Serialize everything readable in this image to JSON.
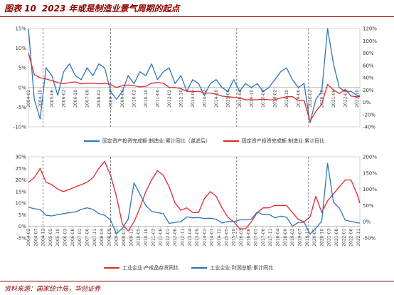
{
  "header": {
    "figure_number": "图表 10",
    "title": "2023 年或是制造业景气周期的起点"
  },
  "footer": {
    "source": "资料来源：国家统计局，华创证券"
  },
  "colors": {
    "accent": "#8B0000",
    "series_blue": "#2E75B6",
    "series_red": "#E0282E"
  },
  "chart_data": [
    {
      "type": "line",
      "title": "",
      "xlabel": "",
      "ylabel": "",
      "ylim_left": [
        -10,
        15
      ],
      "ylim_right": [
        -40,
        120
      ],
      "left_ticks": [
        "15%",
        "10%",
        "5%",
        "0%",
        "-5%",
        "-10%"
      ],
      "right_ticks": [
        "120%",
        "100%",
        "80%",
        "60%",
        "40%",
        "20%",
        "0%",
        "-20%",
        "-40%"
      ],
      "x_ticks": [
        "2004-02",
        "2004-10",
        "2005-06",
        "2006-02",
        "2006-10",
        "2007-06",
        "2008-02",
        "2008-10",
        "2009-06",
        "2010-02",
        "2010-10",
        "2011-06",
        "2012-02",
        "2012-10",
        "2013-06",
        "2014-02",
        "2014-10",
        "2015-06",
        "2016-02",
        "2016-10",
        "2017-06",
        "2018-02",
        "2018-10",
        "2019-06",
        "2020-02",
        "2020-10",
        "2021-06",
        "2022-02",
        "2022-10"
      ],
      "dashed_lines_x": [
        "2004-12",
        "2008-10",
        "2015-12",
        "2020-01"
      ],
      "legend_position": "bottom",
      "series": [
        {
          "name": "固定资产投资完成额:制造业:累计同比（逆滤后）",
          "axis": "left",
          "color": "#2E75B6",
          "x": [
            "2004-02",
            "2004-06",
            "2004-10",
            "2005-02",
            "2005-06",
            "2005-10",
            "2006-02",
            "2006-06",
            "2006-10",
            "2007-02",
            "2007-06",
            "2007-10",
            "2008-02",
            "2008-06",
            "2008-10",
            "2009-02",
            "2009-06",
            "2009-10",
            "2010-02",
            "2010-06",
            "2010-10",
            "2011-02",
            "2011-06",
            "2011-10",
            "2012-02",
            "2012-06",
            "2012-10",
            "2013-02",
            "2013-06",
            "2013-10",
            "2014-02",
            "2014-06",
            "2014-10",
            "2015-02",
            "2015-06",
            "2015-10",
            "2016-02",
            "2016-06",
            "2016-10",
            "2017-02",
            "2017-06",
            "2017-10",
            "2018-02",
            "2018-06",
            "2018-10",
            "2019-02",
            "2019-06",
            "2019-10",
            "2020-02",
            "2020-06",
            "2020-10",
            "2021-02",
            "2021-06",
            "2021-10",
            "2022-02",
            "2022-06",
            "2022-10",
            "2022-12"
          ],
          "values": [
            15,
            -3,
            -8,
            5,
            3,
            -2,
            4,
            6,
            3,
            2,
            5,
            3,
            6,
            5,
            -1,
            -3,
            -1,
            3,
            1,
            4,
            3,
            6,
            2,
            4,
            5,
            1,
            3,
            -1,
            2,
            1,
            -2,
            1,
            2,
            0,
            -1,
            2,
            -1,
            1,
            0,
            1,
            -1,
            0,
            2,
            4,
            5,
            2,
            0,
            1,
            -9,
            -3,
            -1,
            15,
            6,
            0,
            -1,
            -1,
            -2,
            -2
          ]
        },
        {
          "name": "固定资产投资完成额:制造业:累计同比",
          "axis": "right",
          "color": "#E0282E",
          "x": [
            "2004-02",
            "2004-06",
            "2004-10",
            "2005-02",
            "2005-06",
            "2005-10",
            "2006-02",
            "2006-06",
            "2006-10",
            "2007-02",
            "2007-06",
            "2007-10",
            "2008-02",
            "2008-06",
            "2008-10",
            "2009-02",
            "2009-06",
            "2009-10",
            "2010-02",
            "2010-06",
            "2010-10",
            "2011-02",
            "2011-06",
            "2011-10",
            "2012-02",
            "2012-06",
            "2012-10",
            "2013-02",
            "2013-06",
            "2013-10",
            "2014-02",
            "2014-06",
            "2014-10",
            "2015-02",
            "2015-06",
            "2015-10",
            "2016-02",
            "2016-06",
            "2016-10",
            "2017-02",
            "2017-06",
            "2017-10",
            "2018-02",
            "2018-06",
            "2018-10",
            "2019-02",
            "2019-06",
            "2019-10",
            "2020-02",
            "2020-06",
            "2020-10",
            "2021-02",
            "2021-06",
            "2021-10",
            "2022-02",
            "2022-06",
            "2022-10",
            "2022-12"
          ],
          "values": [
            80,
            45,
            40,
            38,
            35,
            32,
            30,
            32,
            33,
            30,
            31,
            31,
            30,
            31,
            29,
            24,
            27,
            28,
            27,
            25,
            26,
            31,
            32,
            31,
            24,
            24,
            22,
            18,
            17,
            18,
            15,
            15,
            13,
            10,
            9,
            8,
            7,
            4,
            4,
            4,
            5,
            4,
            4,
            7,
            9,
            9,
            3,
            3,
            -31,
            -15,
            -3,
            29,
            20,
            14,
            21,
            10,
            9,
            9
          ]
        }
      ]
    },
    {
      "type": "line",
      "title": "",
      "xlabel": "",
      "ylabel": "",
      "ylim_left": [
        -5,
        30
      ],
      "ylim_right": [
        -50,
        200
      ],
      "left_ticks": [
        "30%",
        "25%",
        "20%",
        "15%",
        "10%",
        "5%",
        "0%",
        "-5%"
      ],
      "right_ticks": [
        "200%",
        "150%",
        "100%",
        "50%",
        "0%",
        "-50%"
      ],
      "x_ticks": [
        "2004-02",
        "2004-07",
        "2004-12",
        "2005-05",
        "2005-10",
        "2006-03",
        "2006-08",
        "2007-01",
        "2007-06",
        "2007-11",
        "2008-04",
        "2008-09",
        "2009-02",
        "2009-07",
        "2009-12",
        "2010-05",
        "2010-10",
        "2011-03",
        "2011-08",
        "2012-01",
        "2012-06",
        "2012-11",
        "2013-04",
        "2013-09",
        "2014-02",
        "2014-07",
        "2014-12",
        "2015-05",
        "2015-10",
        "2016-03",
        "2016-08",
        "2017-01",
        "2017-06",
        "2017-11",
        "2018-04",
        "2018-09",
        "2019-02",
        "2019-07",
        "2019-12",
        "2020-05",
        "2020-10",
        "2021-03",
        "2021-08",
        "2022-01",
        "2022-06",
        "2022-11"
      ],
      "dashed_lines_x": [
        "2004-12",
        "2008-10",
        "2015-12",
        "2020-01"
      ],
      "legend_position": "bottom",
      "series": [
        {
          "name": "工业企业:产成品存货同比",
          "axis": "left",
          "color": "#E0282E",
          "x": [
            "2004-02",
            "2004-06",
            "2004-10",
            "2005-02",
            "2005-06",
            "2005-10",
            "2006-02",
            "2006-06",
            "2006-10",
            "2007-02",
            "2007-06",
            "2007-10",
            "2008-02",
            "2008-06",
            "2008-10",
            "2009-02",
            "2009-06",
            "2009-10",
            "2010-02",
            "2010-06",
            "2010-10",
            "2011-02",
            "2011-06",
            "2011-10",
            "2012-02",
            "2012-06",
            "2012-10",
            "2013-02",
            "2013-06",
            "2013-10",
            "2014-02",
            "2014-06",
            "2014-10",
            "2015-02",
            "2015-06",
            "2015-10",
            "2016-02",
            "2016-06",
            "2016-10",
            "2017-02",
            "2017-06",
            "2017-10",
            "2018-02",
            "2018-06",
            "2018-10",
            "2019-02",
            "2019-06",
            "2019-10",
            "2020-02",
            "2020-06",
            "2020-10",
            "2021-02",
            "2021-06",
            "2021-10",
            "2022-02",
            "2022-06",
            "2022-10",
            "2022-12"
          ],
          "values": [
            19,
            21,
            25,
            19,
            18,
            16,
            15,
            16,
            17,
            18,
            19,
            21,
            25,
            28,
            22,
            13,
            1,
            -2,
            2,
            8,
            15,
            20,
            24,
            22,
            17,
            10,
            7,
            8,
            6,
            6,
            12,
            15,
            13,
            8,
            4,
            2,
            -1,
            -1,
            2,
            6,
            8,
            8,
            9,
            9,
            9,
            6,
            3,
            2,
            4,
            13,
            6,
            11,
            14,
            17,
            20,
            20,
            14,
            10
          ]
        },
        {
          "name": "工业企业:利润总额:累计同比",
          "axis": "right",
          "color": "#2E75B6",
          "x": [
            "2004-02",
            "2004-06",
            "2004-10",
            "2005-02",
            "2005-06",
            "2005-10",
            "2006-02",
            "2006-06",
            "2006-10",
            "2007-02",
            "2007-06",
            "2007-10",
            "2008-02",
            "2008-06",
            "2008-10",
            "2009-02",
            "2009-06",
            "2009-10",
            "2010-02",
            "2010-06",
            "2010-10",
            "2011-02",
            "2011-06",
            "2011-10",
            "2012-02",
            "2012-06",
            "2012-10",
            "2013-02",
            "2013-06",
            "2013-10",
            "2014-02",
            "2014-06",
            "2014-10",
            "2015-02",
            "2015-06",
            "2015-10",
            "2016-02",
            "2016-06",
            "2016-10",
            "2017-02",
            "2017-06",
            "2017-10",
            "2018-02",
            "2018-06",
            "2018-10",
            "2019-02",
            "2019-06",
            "2019-10",
            "2020-02",
            "2020-06",
            "2020-10",
            "2021-02",
            "2021-06",
            "2021-10",
            "2022-02",
            "2022-06",
            "2022-10",
            "2022-12"
          ],
          "values": [
            45,
            40,
            38,
            20,
            18,
            22,
            25,
            28,
            30,
            38,
            43,
            38,
            25,
            20,
            5,
            -37,
            -20,
            8,
            120,
            85,
            50,
            32,
            28,
            25,
            -5,
            -2,
            0,
            15,
            12,
            13,
            10,
            11,
            8,
            -4,
            1,
            0,
            6,
            6,
            8,
            30,
            22,
            23,
            12,
            17,
            14,
            -14,
            -2,
            -2,
            -38,
            -20,
            2,
            180,
            60,
            42,
            5,
            1,
            -3,
            -4
          ]
        }
      ]
    }
  ]
}
